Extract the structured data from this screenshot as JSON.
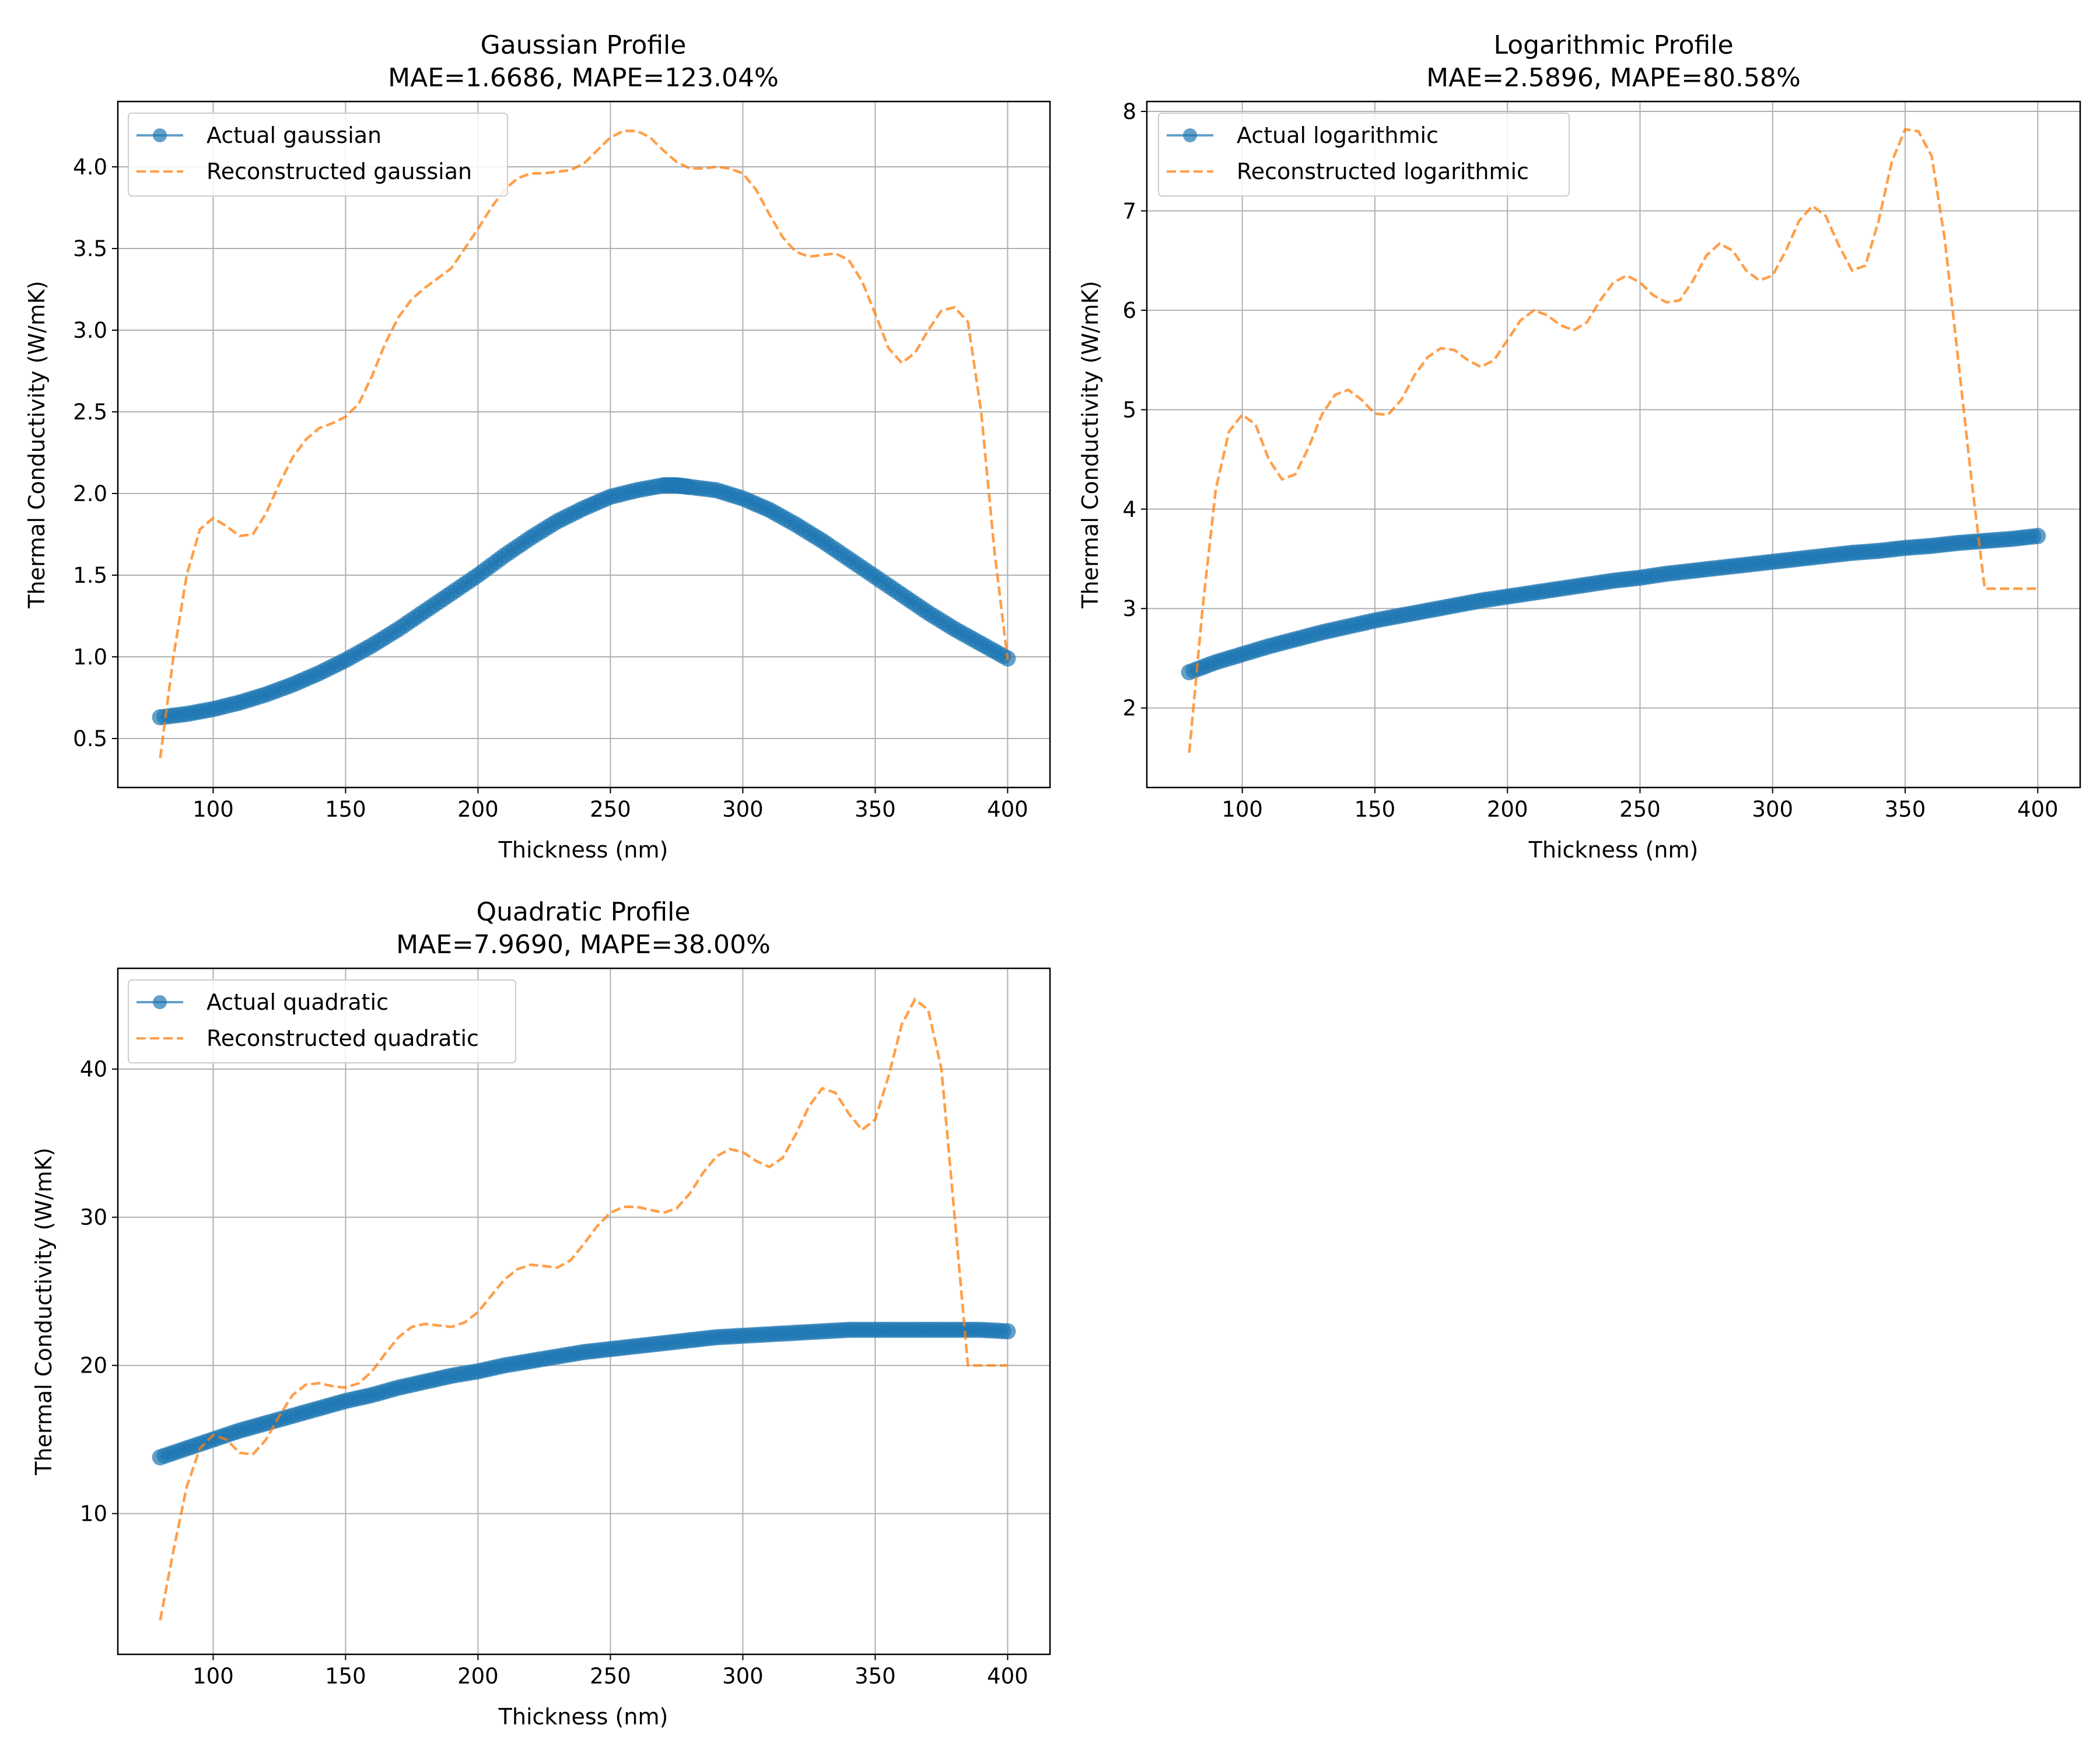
{
  "chart_data": [
    {
      "type": "line",
      "title": "Gaussian Profile",
      "subtitle": "MAE=1.6686, MAPE=123.04%",
      "xlabel": "Thickness (nm)",
      "ylabel": "Thermal Conductivity (W/mK)",
      "xlim": [
        64,
        416
      ],
      "ylim": [
        0.2,
        4.4
      ],
      "xticks": [
        100,
        150,
        200,
        250,
        300,
        350,
        400
      ],
      "yticks": [
        0.5,
        1.0,
        1.5,
        2.0,
        2.5,
        3.0,
        3.5,
        4.0
      ],
      "ytick_labels": [
        "0.5",
        "1.0",
        "1.5",
        "2.0",
        "2.5",
        "3.0",
        "3.5",
        "4.0"
      ],
      "grid": true,
      "legend": "upper-left",
      "series": [
        {
          "name": "Actual gaussian",
          "style": "markers-line",
          "color": "#1f77b4",
          "x": [
            80,
            90,
            100,
            110,
            120,
            130,
            140,
            150,
            160,
            170,
            180,
            190,
            200,
            210,
            220,
            230,
            240,
            250,
            260,
            270,
            275,
            280,
            290,
            300,
            310,
            320,
            330,
            340,
            350,
            360,
            370,
            380,
            390,
            400
          ],
          "y": [
            0.63,
            0.65,
            0.68,
            0.72,
            0.77,
            0.83,
            0.9,
            0.98,
            1.07,
            1.17,
            1.28,
            1.39,
            1.5,
            1.62,
            1.73,
            1.83,
            1.91,
            1.98,
            2.02,
            2.05,
            2.05,
            2.04,
            2.02,
            1.97,
            1.9,
            1.81,
            1.71,
            1.6,
            1.49,
            1.38,
            1.27,
            1.17,
            1.08,
            0.99
          ]
        },
        {
          "name": "Reconstructed gaussian",
          "style": "dashed",
          "color": "#ff7f0e",
          "x": [
            80,
            85,
            90,
            95,
            100,
            105,
            110,
            115,
            120,
            125,
            130,
            135,
            140,
            145,
            150,
            155,
            160,
            165,
            170,
            175,
            180,
            185,
            190,
            195,
            200,
            205,
            210,
            215,
            220,
            225,
            230,
            235,
            240,
            245,
            250,
            255,
            260,
            265,
            270,
            275,
            280,
            285,
            290,
            295,
            300,
            305,
            310,
            315,
            320,
            325,
            330,
            335,
            340,
            345,
            350,
            355,
            360,
            365,
            370,
            375,
            380,
            385,
            390,
            395,
            400
          ],
          "y": [
            0.38,
            1.0,
            1.5,
            1.78,
            1.85,
            1.8,
            1.74,
            1.75,
            1.88,
            2.06,
            2.22,
            2.33,
            2.4,
            2.43,
            2.47,
            2.55,
            2.72,
            2.92,
            3.08,
            3.19,
            3.26,
            3.32,
            3.38,
            3.5,
            3.62,
            3.75,
            3.86,
            3.93,
            3.96,
            3.96,
            3.97,
            3.98,
            4.02,
            4.1,
            4.18,
            4.22,
            4.22,
            4.18,
            4.1,
            4.03,
            3.99,
            3.99,
            4.0,
            3.99,
            3.96,
            3.86,
            3.71,
            3.57,
            3.48,
            3.45,
            3.46,
            3.47,
            3.43,
            3.3,
            3.1,
            2.89,
            2.8,
            2.86,
            3.0,
            3.12,
            3.14,
            3.05,
            2.5,
            1.65,
            0.98
          ]
        }
      ]
    },
    {
      "type": "line",
      "title": "Logarithmic Profile",
      "subtitle": "MAE=2.5896, MAPE=80.58%",
      "xlabel": "Thickness (nm)",
      "ylabel": "Thermal Conductivity (W/mK)",
      "xlim": [
        64,
        416
      ],
      "ylim": [
        1.2,
        8.1
      ],
      "xticks": [
        100,
        150,
        200,
        250,
        300,
        350,
        400
      ],
      "yticks": [
        2,
        3,
        4,
        5,
        6,
        7,
        8
      ],
      "ytick_labels": [
        "2",
        "3",
        "4",
        "5",
        "6",
        "7",
        "8"
      ],
      "grid": true,
      "legend": "upper-left",
      "series": [
        {
          "name": "Actual logarithmic",
          "style": "markers-line",
          "color": "#1f77b4",
          "x": [
            80,
            90,
            100,
            110,
            120,
            130,
            140,
            150,
            160,
            170,
            180,
            190,
            200,
            210,
            220,
            230,
            240,
            250,
            260,
            270,
            280,
            290,
            300,
            310,
            320,
            330,
            340,
            350,
            360,
            370,
            380,
            390,
            400
          ],
          "y": [
            2.36,
            2.46,
            2.54,
            2.62,
            2.69,
            2.76,
            2.82,
            2.88,
            2.93,
            2.98,
            3.03,
            3.08,
            3.12,
            3.16,
            3.2,
            3.24,
            3.28,
            3.31,
            3.35,
            3.38,
            3.41,
            3.44,
            3.47,
            3.5,
            3.53,
            3.56,
            3.58,
            3.61,
            3.63,
            3.66,
            3.68,
            3.7,
            3.73
          ]
        },
        {
          "name": "Reconstructed logarithmic",
          "style": "dashed",
          "color": "#ff7f0e",
          "x": [
            80,
            85,
            90,
            95,
            100,
            105,
            110,
            115,
            120,
            125,
            130,
            135,
            140,
            145,
            150,
            155,
            160,
            165,
            170,
            175,
            180,
            185,
            190,
            195,
            200,
            205,
            210,
            215,
            220,
            225,
            230,
            235,
            240,
            245,
            250,
            255,
            260,
            265,
            270,
            275,
            280,
            285,
            290,
            295,
            300,
            305,
            310,
            315,
            320,
            325,
            330,
            335,
            340,
            345,
            350,
            355,
            360,
            365,
            370,
            375,
            380,
            385,
            390,
            395,
            400
          ],
          "y": [
            1.55,
            3.0,
            4.2,
            4.78,
            4.95,
            4.85,
            4.5,
            4.3,
            4.35,
            4.62,
            4.95,
            5.15,
            5.2,
            5.1,
            4.96,
            4.95,
            5.1,
            5.35,
            5.53,
            5.62,
            5.6,
            5.5,
            5.43,
            5.5,
            5.7,
            5.9,
            6.0,
            5.95,
            5.85,
            5.8,
            5.88,
            6.1,
            6.28,
            6.35,
            6.28,
            6.15,
            6.08,
            6.1,
            6.3,
            6.55,
            6.67,
            6.6,
            6.4,
            6.3,
            6.35,
            6.6,
            6.9,
            7.05,
            6.95,
            6.65,
            6.4,
            6.45,
            6.9,
            7.5,
            7.82,
            7.8,
            7.55,
            6.7,
            5.5,
            4.3,
            3.2,
            3.2,
            3.2,
            3.2,
            3.2
          ]
        }
      ]
    },
    {
      "type": "line",
      "title": "Quadratic Profile",
      "subtitle": "MAE=7.9690, MAPE=38.00%",
      "xlabel": "Thickness (nm)",
      "ylabel": "Thermal Conductivity (W/mK)",
      "xlim": [
        64,
        416
      ],
      "ylim": [
        0.5,
        46.8
      ],
      "xticks": [
        100,
        150,
        200,
        250,
        300,
        350,
        400
      ],
      "yticks": [
        10,
        20,
        30,
        40
      ],
      "ytick_labels": [
        "10",
        "20",
        "30",
        "40"
      ],
      "grid": true,
      "legend": "upper-left",
      "series": [
        {
          "name": "Actual quadratic",
          "style": "markers-line",
          "color": "#1f77b4",
          "x": [
            80,
            90,
            100,
            110,
            120,
            130,
            140,
            150,
            160,
            170,
            180,
            190,
            200,
            210,
            220,
            230,
            240,
            250,
            260,
            270,
            280,
            290,
            300,
            310,
            320,
            330,
            340,
            350,
            360,
            370,
            380,
            390,
            400
          ],
          "y": [
            13.8,
            14.4,
            15.0,
            15.6,
            16.1,
            16.6,
            17.1,
            17.6,
            18.0,
            18.5,
            18.9,
            19.3,
            19.6,
            20.0,
            20.3,
            20.6,
            20.9,
            21.1,
            21.3,
            21.5,
            21.7,
            21.9,
            22.0,
            22.1,
            22.2,
            22.3,
            22.4,
            22.4,
            22.4,
            22.4,
            22.4,
            22.4,
            22.3
          ]
        },
        {
          "name": "Reconstructed quadratic",
          "style": "dashed",
          "color": "#ff7f0e",
          "x": [
            80,
            85,
            90,
            95,
            100,
            105,
            110,
            115,
            120,
            125,
            130,
            135,
            140,
            145,
            150,
            155,
            160,
            165,
            170,
            175,
            180,
            185,
            190,
            195,
            200,
            205,
            210,
            215,
            220,
            225,
            230,
            235,
            240,
            245,
            250,
            255,
            260,
            265,
            270,
            275,
            280,
            285,
            290,
            295,
            300,
            305,
            310,
            315,
            320,
            325,
            330,
            335,
            340,
            345,
            350,
            355,
            360,
            365,
            370,
            375,
            380,
            385,
            390,
            395,
            400
          ],
          "y": [
            2.8,
            7.5,
            11.8,
            14.4,
            15.3,
            15.0,
            14.1,
            14.0,
            15.0,
            16.6,
            18.0,
            18.7,
            18.8,
            18.6,
            18.5,
            18.8,
            19.6,
            20.8,
            21.9,
            22.6,
            22.8,
            22.7,
            22.6,
            22.9,
            23.6,
            24.7,
            25.8,
            26.5,
            26.8,
            26.7,
            26.6,
            27.1,
            28.2,
            29.4,
            30.3,
            30.7,
            30.7,
            30.5,
            30.3,
            30.6,
            31.6,
            33.0,
            34.1,
            34.6,
            34.4,
            33.8,
            33.4,
            34.0,
            35.6,
            37.5,
            38.7,
            38.4,
            37.0,
            35.9,
            36.6,
            39.5,
            43.0,
            44.7,
            44.0,
            40.0,
            30.0,
            20.0,
            20.0,
            20.0,
            20.0
          ]
        }
      ]
    }
  ]
}
